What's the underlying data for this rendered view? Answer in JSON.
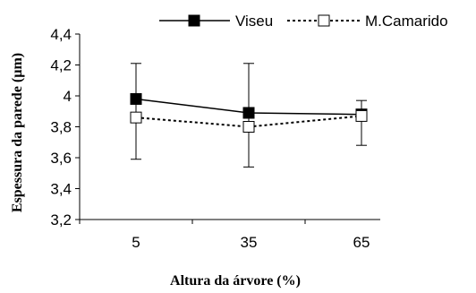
{
  "chart_data": {
    "type": "line",
    "xlabel": "Altura da árvore (%)",
    "ylabel": "Espessura da parede  (µm)",
    "categories": [
      "5",
      "35",
      "65"
    ],
    "ylim": [
      3.2,
      4.4
    ],
    "yticks": [
      "3,2",
      "3,4",
      "3,6",
      "3,8",
      "4",
      "4,2",
      "4,4"
    ],
    "grid": false,
    "legend_position": "top",
    "series": [
      {
        "name": "Viseu",
        "values": [
          3.98,
          3.89,
          3.88
        ],
        "error_low": [
          0.39,
          0.35,
          0.2
        ],
        "error_high": [
          0.23,
          0.32,
          0.09
        ],
        "line_style": "solid",
        "marker": "filled-square",
        "color": "#000000"
      },
      {
        "name": "M.Camarido",
        "values": [
          3.86,
          3.8,
          3.87
        ],
        "line_style": "dotted",
        "marker": "open-square",
        "color": "#000000"
      }
    ]
  }
}
